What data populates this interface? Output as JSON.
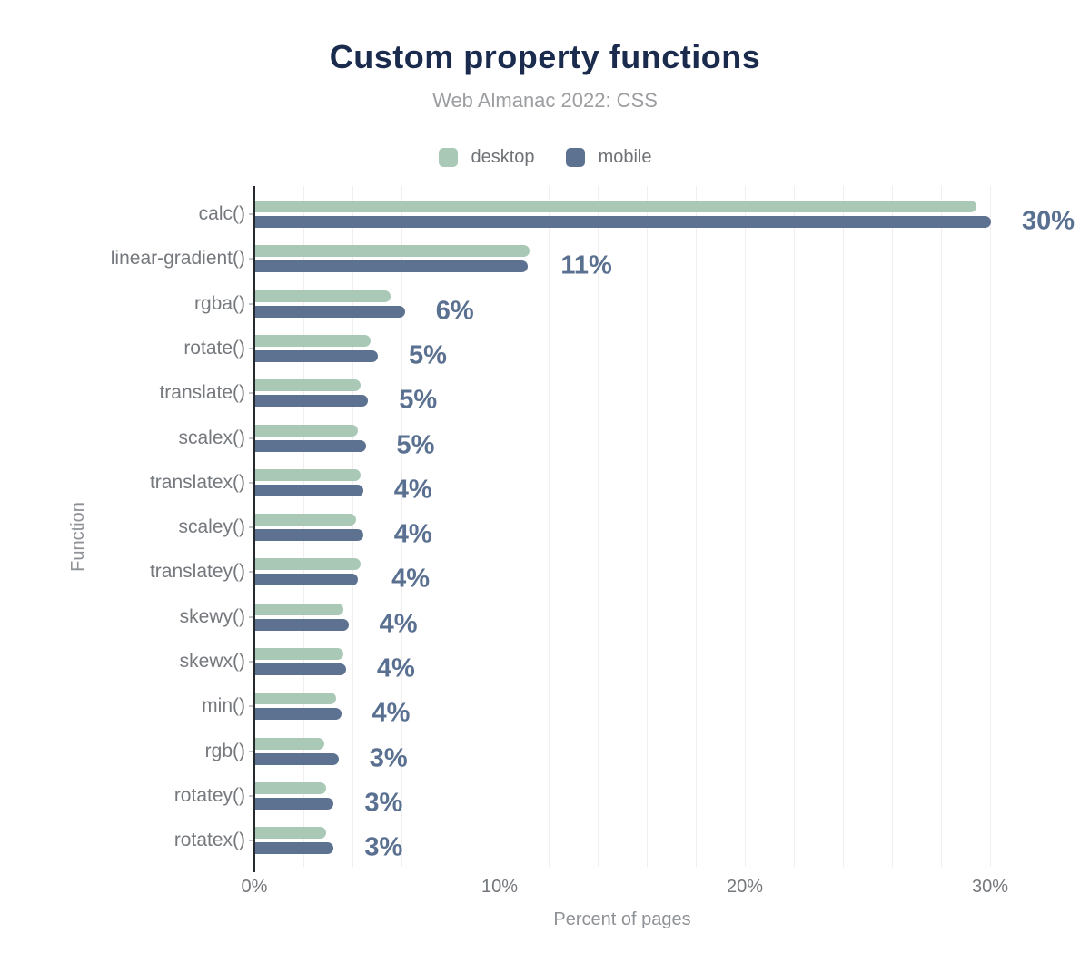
{
  "colors": {
    "background": "#ffffff",
    "title": "#1a2b4d",
    "subtitle": "#9c9ea1",
    "desktop_bar": "#a9c9b6",
    "mobile_bar": "#5d7290",
    "value_label": "#5a7090",
    "axis_line": "#26292e",
    "gridline": "#f1eef0",
    "category_label": "#75797e"
  },
  "legend": {
    "items": [
      {
        "label": "desktop",
        "color": "#a9c9b6"
      },
      {
        "label": "mobile",
        "color": "#5d7290"
      }
    ]
  },
  "chart_data": {
    "type": "bar",
    "orientation": "horizontal",
    "title": "Custom property functions",
    "subtitle": "Web Almanac 2022: CSS",
    "xlabel": "Percent of pages",
    "ylabel": "Function",
    "xlim": [
      0,
      33.5
    ],
    "grid": true,
    "gridline_step_pct": 2,
    "legend_position": "top",
    "xticks": [
      {
        "value": 0,
        "label": "0%"
      },
      {
        "value": 10,
        "label": "10%"
      },
      {
        "value": 20,
        "label": "20%"
      },
      {
        "value": 30,
        "label": "30%"
      }
    ],
    "categories": [
      "calc()",
      "linear-gradient()",
      "rgba()",
      "rotate()",
      "translate()",
      "scalex()",
      "translatex()",
      "scaley()",
      "translatey()",
      "skewy()",
      "skewx()",
      "min()",
      "rgb()",
      "rotatey()",
      "rotatex()"
    ],
    "series": [
      {
        "name": "desktop",
        "color": "#a9c9b6",
        "values": [
          29.4,
          11.2,
          5.5,
          4.7,
          4.3,
          4.2,
          4.3,
          4.1,
          4.3,
          3.6,
          3.6,
          3.3,
          2.8,
          2.9,
          2.9
        ]
      },
      {
        "name": "mobile",
        "color": "#5d7290",
        "values": [
          30.0,
          11.1,
          6.1,
          5.0,
          4.6,
          4.5,
          4.4,
          4.4,
          4.2,
          3.8,
          3.7,
          3.5,
          3.4,
          3.2,
          3.2
        ]
      }
    ],
    "value_labels": [
      "30%",
      "11%",
      "6%",
      "5%",
      "5%",
      "5%",
      "4%",
      "4%",
      "4%",
      "4%",
      "4%",
      "4%",
      "3%",
      "3%",
      "3%"
    ]
  }
}
